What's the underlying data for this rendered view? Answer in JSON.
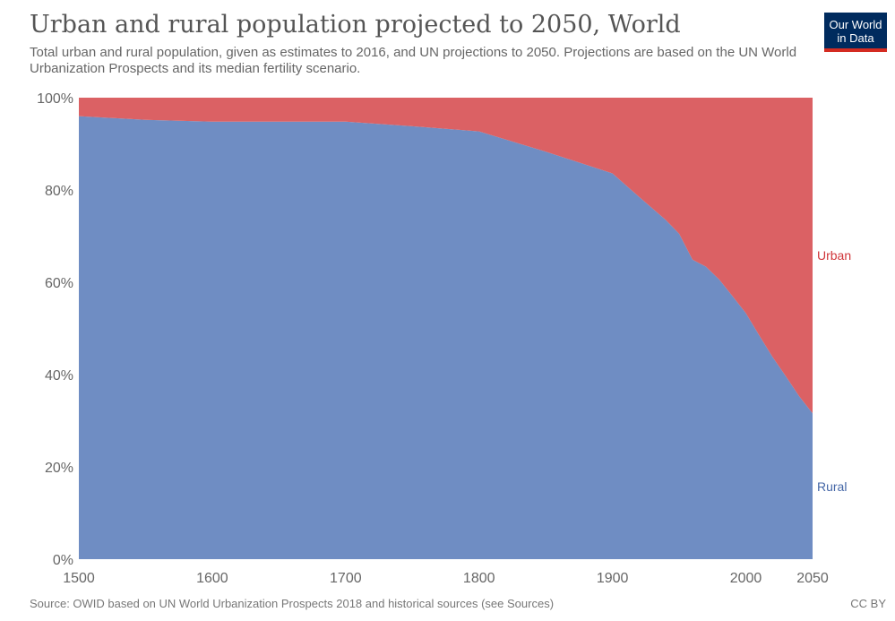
{
  "header": {
    "title": "Urban and rural population projected to 2050, World",
    "subtitle": "Total urban and rural population, given as estimates to 2016, and UN projections to 2050. Projections are based on the UN World Urbanization Prospects and its median fertility scenario.",
    "logo_line1": "Our World",
    "logo_line2": "in Data"
  },
  "footer": {
    "source": "Source: OWID based on UN World Urbanization Prospects 2018 and historical sources (see Sources)",
    "license": "CC BY"
  },
  "colors": {
    "rural": "#6f8dc3",
    "urban": "#db6164",
    "rural_label": "#4567a7",
    "urban_label": "#d0363a",
    "logo_bg": "#002b5e",
    "logo_bar": "#d42b21"
  },
  "chart_data": {
    "type": "area",
    "stacked": true,
    "normalized": true,
    "x": [
      1500,
      1550,
      1600,
      1650,
      1700,
      1750,
      1800,
      1850,
      1900,
      1920,
      1940,
      1950,
      1960,
      1970,
      1980,
      1990,
      2000,
      2010,
      2020,
      2030,
      2040,
      2050
    ],
    "series": [
      {
        "name": "Rural",
        "values": [
          96.0,
          95.2,
          94.8,
          94.8,
          94.8,
          93.8,
          92.7,
          88.3,
          83.6,
          78.5,
          73.5,
          70.5,
          64.9,
          63.4,
          60.6,
          57.0,
          53.3,
          48.5,
          43.8,
          39.6,
          35.3,
          31.6
        ]
      },
      {
        "name": "Urban",
        "values": [
          4.0,
          4.8,
          5.2,
          5.2,
          5.2,
          6.2,
          7.3,
          11.7,
          16.4,
          21.5,
          26.5,
          29.5,
          35.1,
          36.6,
          39.4,
          43.0,
          46.7,
          51.5,
          56.2,
          60.4,
          64.7,
          68.4
        ]
      }
    ],
    "x_ticks": [
      "1500",
      "1600",
      "1700",
      "1800",
      "1900",
      "2000",
      "2050"
    ],
    "x_tick_values": [
      1500,
      1600,
      1700,
      1800,
      1900,
      2000,
      2050
    ],
    "y_ticks": [
      "0%",
      "20%",
      "40%",
      "60%",
      "80%",
      "100%"
    ],
    "y_tick_values": [
      0,
      20,
      40,
      60,
      80,
      100
    ],
    "xlim": [
      1500,
      2050
    ],
    "ylim": [
      0,
      100
    ],
    "legend": "right (inline labels)",
    "grid": false
  }
}
